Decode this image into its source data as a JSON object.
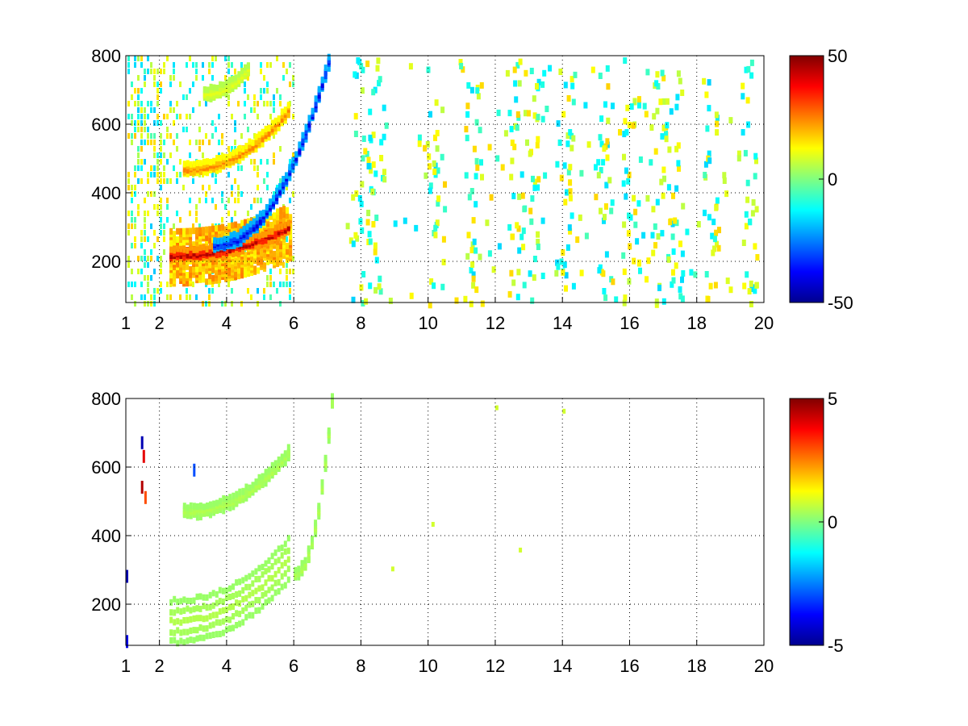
{
  "chart_data": [
    {
      "type": "heatmap",
      "title": "",
      "xlabel": "",
      "ylabel": "",
      "xlim": [
        1,
        20
      ],
      "ylim": [
        80,
        800
      ],
      "x_ticks": [
        1,
        2,
        4,
        6,
        8,
        10,
        12,
        14,
        16,
        18,
        20
      ],
      "x_tick_labels": [
        "1",
        "2",
        "4",
        "6",
        "8",
        "10",
        "12",
        "14",
        "16",
        "18",
        "20"
      ],
      "y_ticks": [
        200,
        400,
        600,
        800
      ],
      "y_tick_labels": [
        "200",
        "400",
        "600",
        "800"
      ],
      "grid": true,
      "colormap": "jet",
      "colorbar": {
        "min": -50,
        "max": 50,
        "ticks": [
          50,
          0,
          -50
        ],
        "tick_labels": [
          "50",
          "0",
          "-50"
        ]
      },
      "features": [
        {
          "name": "lower-ridge",
          "x_start": 2.3,
          "x_end": 5.8,
          "y_start": 220,
          "y_end": 300,
          "value": 45
        },
        {
          "name": "negative-ridge",
          "x_start": 3.6,
          "x_end": 7.0,
          "y_start": 250,
          "y_end": 780,
          "value": -40
        },
        {
          "name": "upper-ridge",
          "x_start": 2.7,
          "x_end": 5.8,
          "y_start": 470,
          "y_end": 640,
          "value": 25
        },
        {
          "name": "top-ridge",
          "x_start": 3.3,
          "x_end": 4.6,
          "y_start": 690,
          "y_end": 760,
          "value": 10
        }
      ]
    },
    {
      "type": "heatmap",
      "title": "",
      "xlabel": "",
      "ylabel": "",
      "xlim": [
        1,
        20
      ],
      "ylim": [
        80,
        800
      ],
      "x_ticks": [
        1,
        2,
        4,
        6,
        8,
        10,
        12,
        14,
        16,
        18,
        20
      ],
      "x_tick_labels": [
        "1",
        "2",
        "4",
        "6",
        "8",
        "10",
        "12",
        "14",
        "16",
        "18",
        "20"
      ],
      "y_ticks": [
        200,
        400,
        600,
        800
      ],
      "y_tick_labels": [
        "200",
        "400",
        "600",
        "800"
      ],
      "grid": true,
      "colormap": "jet",
      "colorbar": {
        "min": -5,
        "max": 5,
        "ticks": [
          5,
          0,
          -5
        ],
        "tick_labels": [
          "5",
          "0",
          "-5"
        ]
      },
      "features": [
        {
          "name": "lower-ridge",
          "x_start": 2.3,
          "x_end": 5.8,
          "y_start": 150,
          "y_end": 330,
          "value": 0.5
        },
        {
          "name": "upper-ridge",
          "x_start": 2.7,
          "x_end": 5.8,
          "y_start": 470,
          "y_end": 640,
          "value": 0.5
        },
        {
          "name": "steep-branch",
          "x_start": 6.0,
          "x_end": 7.1,
          "y_start": 290,
          "y_end": 790,
          "value": 0.5
        }
      ]
    }
  ]
}
